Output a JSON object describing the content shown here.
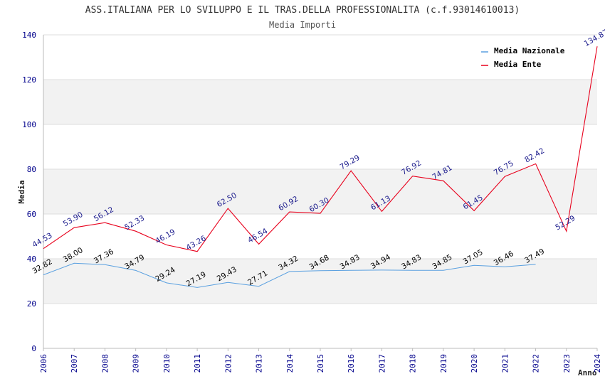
{
  "chart_data": {
    "type": "line",
    "title": "ASS.ITALIANA PER LO SVILUPPO E IL TRAS.DELLA PROFESSIONALITA (c.f.93014610013)",
    "subtitle": "Media Importi",
    "xlabel": "Anno",
    "ylabel": "Media",
    "ylim": [
      0,
      140
    ],
    "yticks": [
      0,
      20,
      40,
      60,
      80,
      100,
      120,
      140
    ],
    "categories": [
      "2006",
      "2007",
      "2008",
      "2009",
      "2010",
      "2011",
      "2012",
      "2013",
      "2014",
      "2015",
      "2016",
      "2017",
      "2018",
      "2019",
      "2020",
      "2021",
      "2022",
      "2023",
      "2024"
    ],
    "series": [
      {
        "name": "Media Nazionale",
        "color": "#5aa0e0",
        "label_color": "#000000",
        "values": [
          32.82,
          38.0,
          37.36,
          34.79,
          29.24,
          27.19,
          29.43,
          27.71,
          34.32,
          34.68,
          34.83,
          34.94,
          34.83,
          34.85,
          37.05,
          36.46,
          37.49,
          null,
          null
        ],
        "labels": [
          "32.82",
          "38.00",
          "37.36",
          "34.79",
          "29.24",
          "27.19",
          "29.43",
          "27.71",
          "34.32",
          "34.68",
          "34.83",
          "34.94",
          "34.83",
          "34.85",
          "37.05",
          "36.46",
          "37.49",
          null,
          null
        ]
      },
      {
        "name": "Media Ente",
        "color": "#e8001c",
        "label_color": "#1a1a8c",
        "values": [
          44.53,
          53.9,
          56.12,
          52.33,
          46.19,
          43.26,
          62.5,
          46.54,
          60.92,
          60.3,
          79.29,
          61.13,
          76.92,
          74.81,
          61.45,
          76.75,
          82.42,
          52.29,
          134.87
        ],
        "labels": [
          "44.53",
          "53.90",
          "56.12",
          "52.33",
          "46.19",
          "43.26",
          "62.50",
          "46.54",
          "60.92",
          "60.30",
          "79.29",
          "61.13",
          "76.92",
          "74.81",
          "61.45",
          "76.75",
          "82.42",
          "52.29",
          "134.87"
        ]
      }
    ],
    "legend_position": "top-right",
    "grid": "alternating horizontal bands"
  }
}
